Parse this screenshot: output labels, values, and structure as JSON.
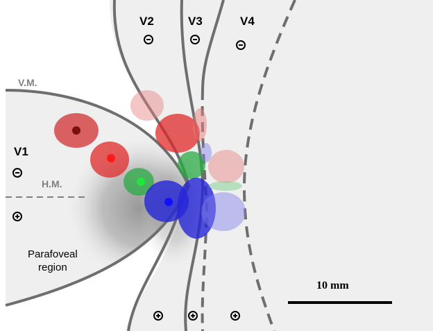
{
  "areas": {
    "v1": "V1",
    "v2": "V2",
    "v3": "V3",
    "v4": "V4"
  },
  "meridians": {
    "vertical": "V.M.",
    "horizontal": "H.M."
  },
  "region_label": "Parafoveal\nregion",
  "scale_bar": {
    "label": "10 mm",
    "color": "#000000"
  },
  "signs": {
    "v1_upper": "minus",
    "v1_lower": "plus",
    "v2_top": "minus",
    "v3_top": "minus",
    "v4_top": "minus",
    "v2_bottom": "plus",
    "v3_bottom": "plus",
    "v4_bottom": "plus"
  },
  "colors": {
    "cortex_fill": "#efefef",
    "boundary_line": "#6e6e6e",
    "dark_red": "#7a0f0f",
    "red": "#e01818",
    "green": "#1faa3a",
    "blue": "#1b1bd6",
    "shadow": "#9a9a9a"
  }
}
